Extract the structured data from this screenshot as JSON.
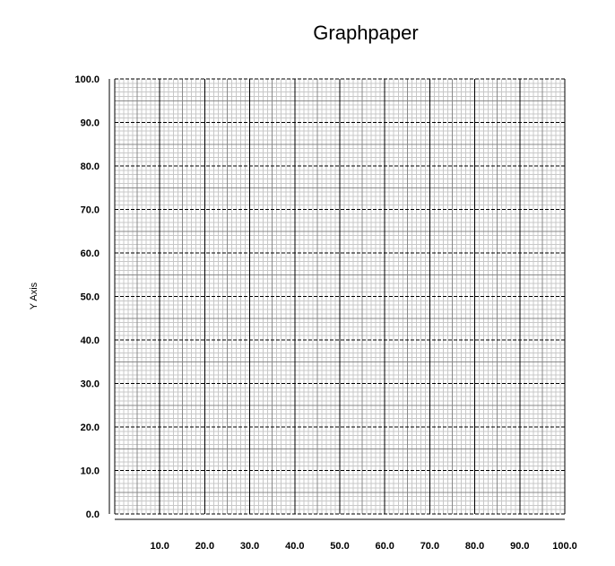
{
  "chart_data": {
    "type": "scatter",
    "title": "Graphpaper",
    "xlabel": "",
    "ylabel": "Y Axis",
    "xlim": [
      0,
      100
    ],
    "ylim": [
      0,
      100
    ],
    "x_ticks": [
      "10.0",
      "20.0",
      "30.0",
      "40.0",
      "50.0",
      "60.0",
      "70.0",
      "80.0",
      "90.0",
      "100.0"
    ],
    "y_ticks": [
      "0.0",
      "10.0",
      "20.0",
      "30.0",
      "40.0",
      "50.0",
      "60.0",
      "70.0",
      "80.0",
      "90.0",
      "100.0"
    ],
    "grid": true,
    "major_grid_step": 10,
    "medium_grid_step": 5,
    "minor_grid_step": 1,
    "series": []
  }
}
